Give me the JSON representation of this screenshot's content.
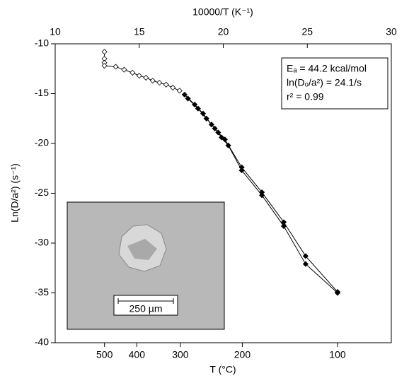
{
  "chart_data": {
    "type": "scatter",
    "x_label": "10000/T (K⁻¹)",
    "y_label": "Ln(D/a²) (s⁻¹)",
    "x2_label": "T (°C)",
    "xlim": [
      10,
      30
    ],
    "xticks": [
      10,
      15,
      20,
      25,
      30
    ],
    "ylim": [
      -40,
      -10
    ],
    "yticks": [
      -40,
      -35,
      -30,
      -25,
      -20,
      -15,
      -10
    ],
    "bottom_ticks": [
      {
        "value": 12.934,
        "label": "500"
      },
      {
        "value": 14.856,
        "label": "400"
      },
      {
        "value": 17.448,
        "label": "300"
      },
      {
        "value": 21.135,
        "label": "200"
      },
      {
        "value": 26.799,
        "label": "100"
      }
    ],
    "annotation": [
      "Eₐ = 44.2 kcal/mol",
      "ln(Dₒ/a²) = 24.1/s",
      "r² = 0.99"
    ],
    "inset_scale_label": "250 µm",
    "series": [
      {
        "marker": "open",
        "color": "#000000",
        "x": [
          12.93,
          12.93,
          12.93,
          12.93,
          13.6,
          14.1,
          14.6,
          15.0,
          15.4,
          15.8,
          16.2,
          16.6,
          17.0,
          17.4
        ],
        "values": [
          -10.8,
          -11.5,
          -11.9,
          -12.2,
          -12.3,
          -12.6,
          -12.9,
          -13.2,
          -13.4,
          -13.7,
          -13.9,
          -14.1,
          -14.4,
          -14.7
        ]
      },
      {
        "marker": "filled",
        "color": "#000000",
        "x": [
          17.7,
          18.3,
          18.8,
          19.3,
          19.7,
          20.1,
          21.1,
          22.3,
          23.6,
          24.9,
          26.8
        ],
        "values": [
          -15.1,
          -16.1,
          -17.0,
          -18.1,
          -18.9,
          -19.6,
          -22.4,
          -24.9,
          -27.9,
          -31.3,
          -34.9
        ]
      },
      {
        "marker": "filled",
        "color": "#000000",
        "x": [
          17.9,
          18.5,
          19.0,
          19.5,
          19.9,
          20.3,
          21.1,
          22.3,
          23.6,
          24.9,
          26.8
        ],
        "values": [
          -15.5,
          -16.5,
          -17.5,
          -18.5,
          -19.4,
          -20.2,
          -22.7,
          -25.2,
          -28.3,
          -32.1,
          -35.0
        ]
      }
    ]
  }
}
